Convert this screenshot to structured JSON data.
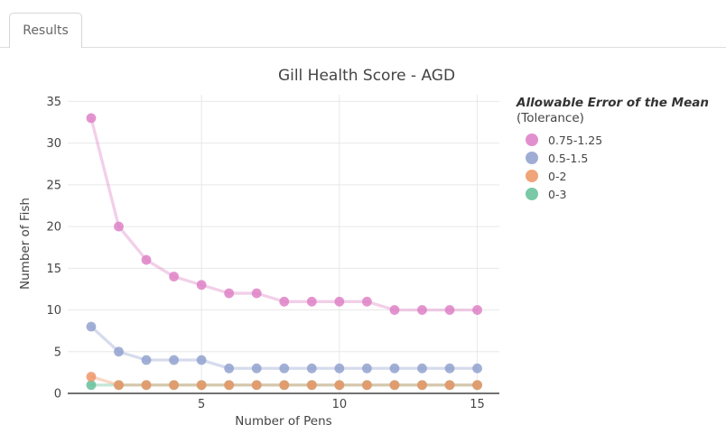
{
  "tabs": [
    {
      "label": "Results",
      "active": true
    }
  ],
  "chart_data": {
    "type": "line",
    "title": "Gill Health Score - AGD",
    "xlabel": "Number of Pens",
    "ylabel": "Number of Fish",
    "legend_title": "Allowable Error of the Mean",
    "legend_subtitle": "(Tolerance)",
    "legend_position": "right",
    "grid": true,
    "grid_color": "#e8e8e8",
    "axis_color": "#444444",
    "x": [
      1,
      2,
      3,
      4,
      5,
      6,
      7,
      8,
      9,
      10,
      11,
      12,
      13,
      14,
      15
    ],
    "xlim": [
      0.15,
      15.8
    ],
    "ylim": [
      0,
      35.8
    ],
    "xticks": [
      5,
      10,
      15
    ],
    "yticks": [
      0,
      5,
      10,
      15,
      20,
      25,
      30,
      35
    ],
    "series": [
      {
        "name": "0.75-1.25",
        "color": "#de81c6",
        "values": [
          33,
          20,
          16,
          14,
          13,
          12,
          12,
          11,
          11,
          11,
          11,
          10,
          10,
          10,
          10
        ]
      },
      {
        "name": "0.5-1.5",
        "color": "#92a2cf",
        "values": [
          8,
          5,
          4,
          4,
          4,
          3,
          3,
          3,
          3,
          3,
          3,
          3,
          3,
          3,
          3
        ]
      },
      {
        "name": "0-2",
        "color": "#ee9767",
        "values": [
          2,
          1,
          1,
          1,
          1,
          1,
          1,
          1,
          1,
          1,
          1,
          1,
          1,
          1,
          1
        ]
      },
      {
        "name": "0-3",
        "color": "#66c09a",
        "values": [
          1,
          1,
          1,
          1,
          1,
          1,
          1,
          1,
          1,
          1,
          1,
          1,
          1,
          1,
          1
        ]
      }
    ]
  }
}
